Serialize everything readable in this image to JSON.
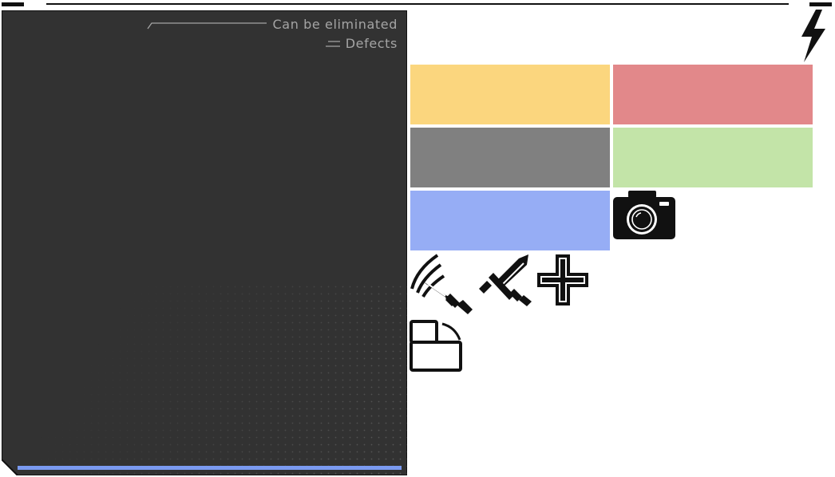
{
  "legend": {
    "items": [
      {
        "label": "Can be eliminated",
        "marker": "line-marker"
      },
      {
        "label": "Defects",
        "marker": "double-line-marker"
      }
    ]
  },
  "swatches": [
    {
      "name": "yellow-swatch",
      "color": "#fbd67e"
    },
    {
      "name": "red-swatch",
      "color": "#e2888a"
    },
    {
      "name": "gray-swatch",
      "color": "#808080"
    },
    {
      "name": "green-swatch",
      "color": "#c3e4a8"
    },
    {
      "name": "blue-swatch",
      "color": "#96adf5"
    }
  ],
  "icons": [
    "lightning-icon",
    "camera-icon",
    "sword-slash-icon",
    "crossed-sword-icon",
    "plus-icon",
    "layout-panel-icon"
  ],
  "colors": {
    "panel": "#323232",
    "accent_bar": "#7a9af0",
    "frame": "#111111"
  }
}
